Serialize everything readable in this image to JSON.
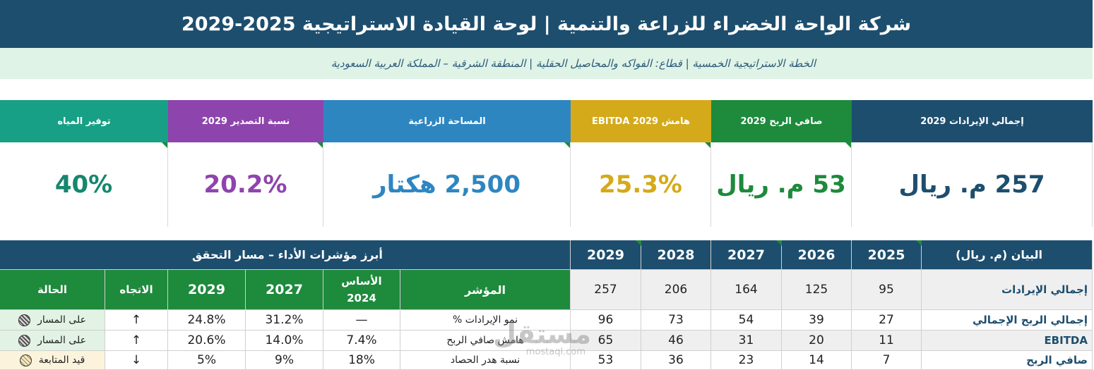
{
  "header": {
    "title": "شركة الواحة الخضراء للزراعة والتنمية | لوحة القيادة الاستراتيجية 2025-2029",
    "subtitle": "الخطة الاستراتيجية الخمسية | قطاع: الفواكه والمحاصيل الحقلية | المنطقة الشرقية – المملكة العربية السعودية"
  },
  "colors": {
    "navy": "#1d4e6e",
    "green": "#1e8a3c",
    "gold": "#d4aa1a",
    "blue": "#2e86c1",
    "purple": "#8e44ad",
    "teal": "#17a085",
    "dark_teal": "#16866f"
  },
  "kpis": [
    {
      "label": "إجمالي الإيرادات 2029",
      "value": "257 م. ريال"
    },
    {
      "label": "صافي الربح 2029",
      "value": "53 م. ريال"
    },
    {
      "label": "هامش EBITDA 2029",
      "value": "25.3%"
    },
    {
      "label": "المساحة الزراعية",
      "value": "2,500 هكتار"
    },
    {
      "label": "نسبة التصدير 2029",
      "value": "20.2%"
    },
    {
      "label": "توفير المياه",
      "value": "40%"
    }
  ],
  "financial_table": {
    "label_header": "البيان (م. ريال)",
    "years": [
      "2025",
      "2026",
      "2027",
      "2028",
      "2029"
    ],
    "rows": [
      {
        "label": "إجمالي الإيرادات",
        "values": [
          "95",
          "125",
          "164",
          "206",
          "257"
        ]
      },
      {
        "label": "إجمالي الربح الإجمالي",
        "values": [
          "27",
          "39",
          "54",
          "73",
          "96"
        ]
      },
      {
        "label": "EBITDA",
        "values": [
          "11",
          "20",
          "31",
          "46",
          "65"
        ]
      },
      {
        "label": "صافي الربح",
        "values": [
          "7",
          "14",
          "23",
          "36",
          "53"
        ]
      }
    ]
  },
  "kpi_table": {
    "title": "أبرز مؤشرات الأداء – مسار التحقق",
    "headers": {
      "indicator": "المؤشر",
      "base": "الأساس 2024",
      "y2027": "2027",
      "y2029": "2029",
      "trend": "الاتجاه",
      "status": "الحالة"
    },
    "rows": [
      {
        "indicator": "نمو الإيرادات %",
        "base": "—",
        "y2027": "31.2%",
        "y2029": "24.8%",
        "trend": "↑",
        "status": "على المسار",
        "status_icon": "on-track-icon"
      },
      {
        "indicator": "هامش صافي الربح",
        "base": "7.4%",
        "y2027": "14.0%",
        "y2029": "20.6%",
        "trend": "↑",
        "status": "على المسار",
        "status_icon": "on-track-icon"
      },
      {
        "indicator": "نسبة هدر الحصاد",
        "base": "18%",
        "y2027": "9%",
        "y2029": "5%",
        "trend": "↓",
        "status": "قيد المتابعة",
        "status_icon": "monitoring-icon"
      }
    ]
  },
  "watermark": {
    "brand": "مستقل",
    "url": "mostaql.com"
  }
}
